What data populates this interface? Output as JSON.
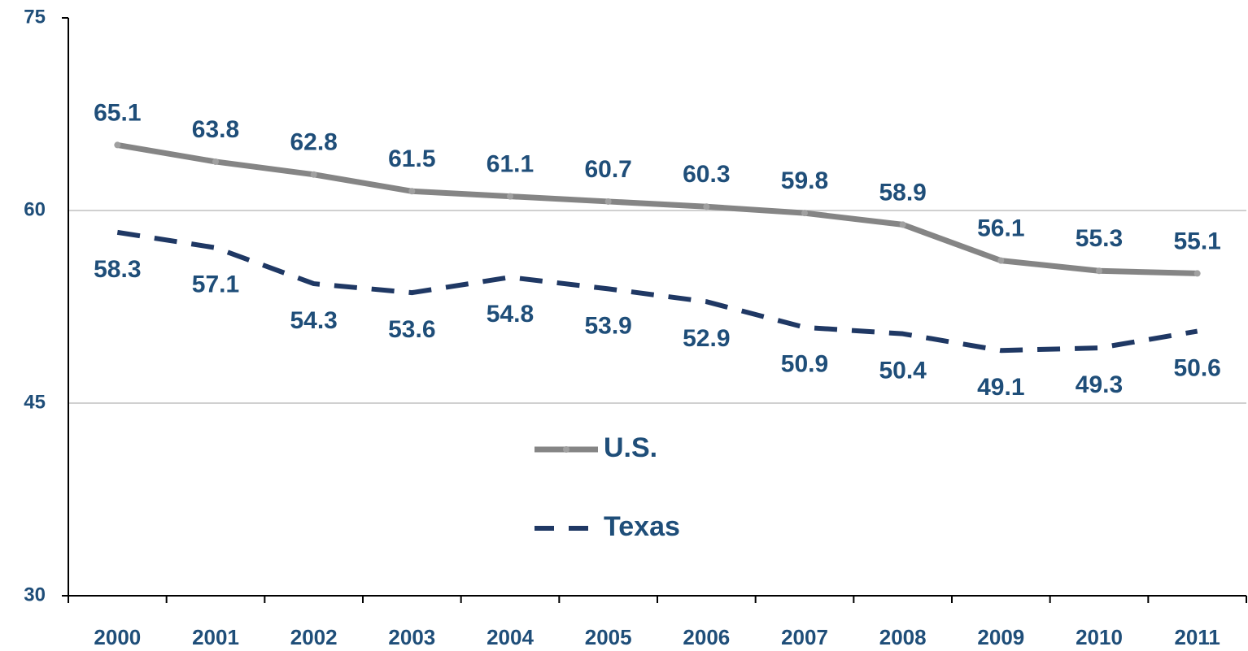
{
  "chart_data": {
    "type": "line",
    "categories": [
      "2000",
      "2001",
      "2002",
      "2003",
      "2004",
      "2005",
      "2006",
      "2007",
      "2008",
      "2009",
      "2010",
      "2011"
    ],
    "series": [
      {
        "name": "U.S.",
        "color": "#858585",
        "values": [
          65.1,
          63.8,
          62.8,
          61.5,
          61.1,
          60.7,
          60.3,
          59.8,
          58.9,
          56.1,
          55.3,
          55.1
        ]
      },
      {
        "name": "Texas",
        "color": "#1f3864",
        "values": [
          58.3,
          57.1,
          54.3,
          53.6,
          54.8,
          53.9,
          52.9,
          50.9,
          50.4,
          49.1,
          49.3,
          50.6
        ]
      }
    ],
    "ylim": [
      30,
      75
    ],
    "yticks": [
      30,
      45,
      60,
      75
    ],
    "grid": true,
    "legend": "center",
    "label_color": "#1f4e79"
  }
}
